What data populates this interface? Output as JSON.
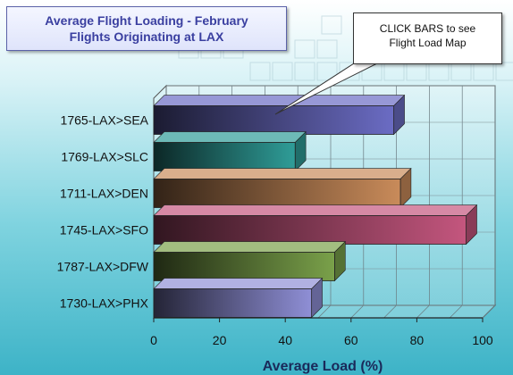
{
  "title": {
    "line1": "Average Flight Loading -  February",
    "line2": "Flights Originating at LAX"
  },
  "callout": {
    "line1": "CLICK BARS to see",
    "line2": "Flight Load Map"
  },
  "chart_data": {
    "type": "bar",
    "orientation": "horizontal",
    "categories": [
      "1765-LAX>SEA",
      "1769-LAX>SLC",
      "1711-LAX>DEN",
      "1745-LAX>SFO",
      "1787-LAX>DFW",
      "1730-LAX>PHX"
    ],
    "values": [
      73,
      43,
      75,
      95,
      55,
      48
    ],
    "xlabel": "Average Load (%)",
    "xlim": [
      0,
      100
    ],
    "xticks": [
      "0",
      "20",
      "40",
      "60",
      "80",
      "100"
    ],
    "grid": true,
    "colors": [
      "#6b6cc4",
      "#2f9d98",
      "#c98b5a",
      "#c4567e",
      "#7aa14a",
      "#8f8fd6"
    ]
  }
}
